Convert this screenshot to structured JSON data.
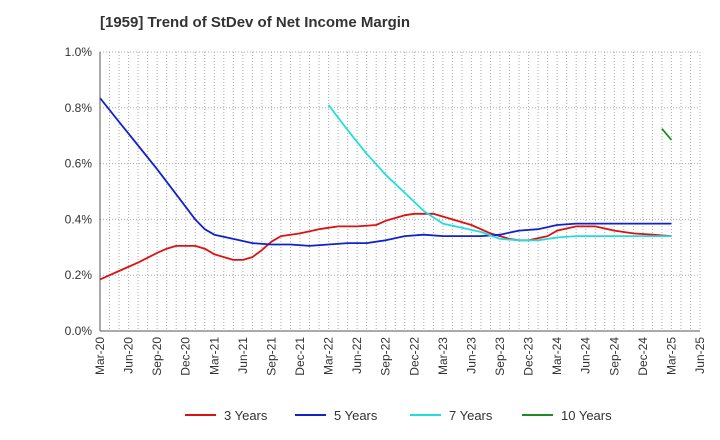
{
  "chart_data": {
    "type": "line",
    "title": "[1959]  Trend of StDev of Net Income Margin",
    "xlabel": "",
    "ylabel": "",
    "ylim": [
      0,
      1.0
    ],
    "y_ticks": [
      "0.0%",
      "0.2%",
      "0.4%",
      "0.6%",
      "0.8%",
      "1.0%"
    ],
    "y_tick_values": [
      0,
      0.2,
      0.4,
      0.6,
      0.8,
      1.0
    ],
    "x_tick_labels": [
      "Mar-20",
      "Jun-20",
      "Sep-20",
      "Dec-20",
      "Mar-21",
      "Jun-21",
      "Sep-21",
      "Dec-21",
      "Mar-22",
      "Jun-22",
      "Sep-22",
      "Dec-22",
      "Mar-23",
      "Jun-23",
      "Sep-23",
      "Dec-23",
      "Mar-24",
      "Jun-24",
      "Sep-24",
      "Dec-24",
      "Mar-25",
      "Jun-25"
    ],
    "x_range": [
      "2020-03",
      "2025-06"
    ],
    "grid": true,
    "legend_position": "bottom",
    "series": [
      {
        "name": "3 Years",
        "color": "#dd1111",
        "points": [
          [
            "2020-03",
            0.185
          ],
          [
            "2020-05",
            0.215
          ],
          [
            "2020-07",
            0.245
          ],
          [
            "2020-09",
            0.28
          ],
          [
            "2020-10",
            0.295
          ],
          [
            "2020-11",
            0.305
          ],
          [
            "2021-01",
            0.305
          ],
          [
            "2021-02",
            0.295
          ],
          [
            "2021-03",
            0.275
          ],
          [
            "2021-05",
            0.255
          ],
          [
            "2021-06",
            0.255
          ],
          [
            "2021-07",
            0.265
          ],
          [
            "2021-08",
            0.29
          ],
          [
            "2021-09",
            0.32
          ],
          [
            "2021-10",
            0.34
          ],
          [
            "2021-12",
            0.35
          ],
          [
            "2022-02",
            0.365
          ],
          [
            "2022-04",
            0.375
          ],
          [
            "2022-06",
            0.375
          ],
          [
            "2022-08",
            0.38
          ],
          [
            "2022-09",
            0.395
          ],
          [
            "2022-11",
            0.415
          ],
          [
            "2022-12",
            0.42
          ],
          [
            "2023-02",
            0.42
          ],
          [
            "2023-04",
            0.4
          ],
          [
            "2023-06",
            0.38
          ],
          [
            "2023-08",
            0.35
          ],
          [
            "2023-09",
            0.34
          ],
          [
            "2023-10",
            0.33
          ],
          [
            "2023-11",
            0.325
          ],
          [
            "2023-12",
            0.325
          ],
          [
            "2024-02",
            0.34
          ],
          [
            "2024-03",
            0.36
          ],
          [
            "2024-05",
            0.375
          ],
          [
            "2024-07",
            0.375
          ],
          [
            "2024-09",
            0.36
          ],
          [
            "2024-11",
            0.35
          ],
          [
            "2025-01",
            0.345
          ],
          [
            "2025-03",
            0.34
          ]
        ]
      },
      {
        "name": "5 Years",
        "color": "#1122cc",
        "points": [
          [
            "2020-03",
            0.835
          ],
          [
            "2020-05",
            0.75
          ],
          [
            "2020-07",
            0.665
          ],
          [
            "2020-09",
            0.58
          ],
          [
            "2020-11",
            0.49
          ],
          [
            "2021-01",
            0.4
          ],
          [
            "2021-02",
            0.365
          ],
          [
            "2021-03",
            0.345
          ],
          [
            "2021-05",
            0.33
          ],
          [
            "2021-07",
            0.315
          ],
          [
            "2021-09",
            0.31
          ],
          [
            "2021-11",
            0.31
          ],
          [
            "2022-01",
            0.305
          ],
          [
            "2022-03",
            0.31
          ],
          [
            "2022-05",
            0.315
          ],
          [
            "2022-07",
            0.315
          ],
          [
            "2022-09",
            0.325
          ],
          [
            "2022-11",
            0.34
          ],
          [
            "2023-01",
            0.345
          ],
          [
            "2023-03",
            0.34
          ],
          [
            "2023-05",
            0.34
          ],
          [
            "2023-07",
            0.34
          ],
          [
            "2023-09",
            0.345
          ],
          [
            "2023-11",
            0.36
          ],
          [
            "2024-01",
            0.365
          ],
          [
            "2024-03",
            0.38
          ],
          [
            "2024-05",
            0.385
          ],
          [
            "2024-07",
            0.385
          ],
          [
            "2024-09",
            0.385
          ],
          [
            "2024-11",
            0.385
          ],
          [
            "2025-01",
            0.385
          ],
          [
            "2025-03",
            0.385
          ]
        ]
      },
      {
        "name": "7 Years",
        "color": "#22dddd",
        "points": [
          [
            "2022-03",
            0.81
          ],
          [
            "2022-05",
            0.72
          ],
          [
            "2022-07",
            0.635
          ],
          [
            "2022-09",
            0.56
          ],
          [
            "2022-11",
            0.495
          ],
          [
            "2023-01",
            0.43
          ],
          [
            "2023-03",
            0.385
          ],
          [
            "2023-05",
            0.37
          ],
          [
            "2023-07",
            0.355
          ],
          [
            "2023-09",
            0.33
          ],
          [
            "2023-11",
            0.325
          ],
          [
            "2024-01",
            0.325
          ],
          [
            "2024-03",
            0.335
          ],
          [
            "2024-05",
            0.34
          ],
          [
            "2024-07",
            0.34
          ],
          [
            "2024-09",
            0.34
          ],
          [
            "2024-11",
            0.34
          ],
          [
            "2025-01",
            0.34
          ],
          [
            "2025-03",
            0.34
          ]
        ]
      },
      {
        "name": "10 Years",
        "color": "#228822",
        "points": [
          [
            "2025-02",
            0.725
          ],
          [
            "2025-03",
            0.685
          ]
        ]
      }
    ]
  }
}
